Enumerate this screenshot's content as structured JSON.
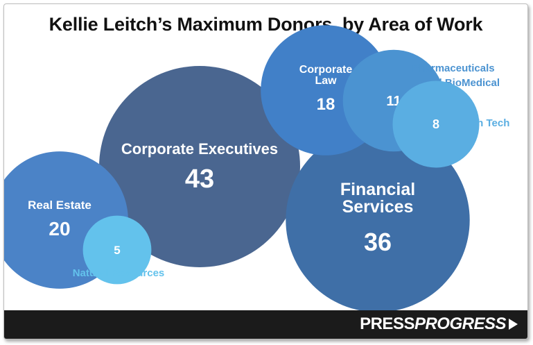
{
  "title": "Kellie Leitch’s Maximum Donors, by Area of Work",
  "brand": {
    "part1": "PRESS",
    "part2": "PROGRESS"
  },
  "chart_data": {
    "type": "bubble",
    "title": "Kellie Leitch’s Maximum Donors, by Area of Work",
    "bubbles": [
      {
        "label": "Corporate Executives",
        "value": 43,
        "color": "#4a6690"
      },
      {
        "label": "Financial Services",
        "value": 36,
        "color": "#3f6fa7"
      },
      {
        "label": "Real Estate",
        "value": 20,
        "color": "#4b83c7"
      },
      {
        "label": "Corporate Law",
        "value": 18,
        "color": "#4180c8"
      },
      {
        "label": "Pharmaceuticals and BioMedical",
        "value": 11,
        "color": "#4b93d1"
      },
      {
        "label": "High Tech",
        "value": 8,
        "color": "#5aaee2"
      },
      {
        "label": "Natural Resources",
        "value": 5,
        "color": "#63c2ec"
      }
    ]
  }
}
